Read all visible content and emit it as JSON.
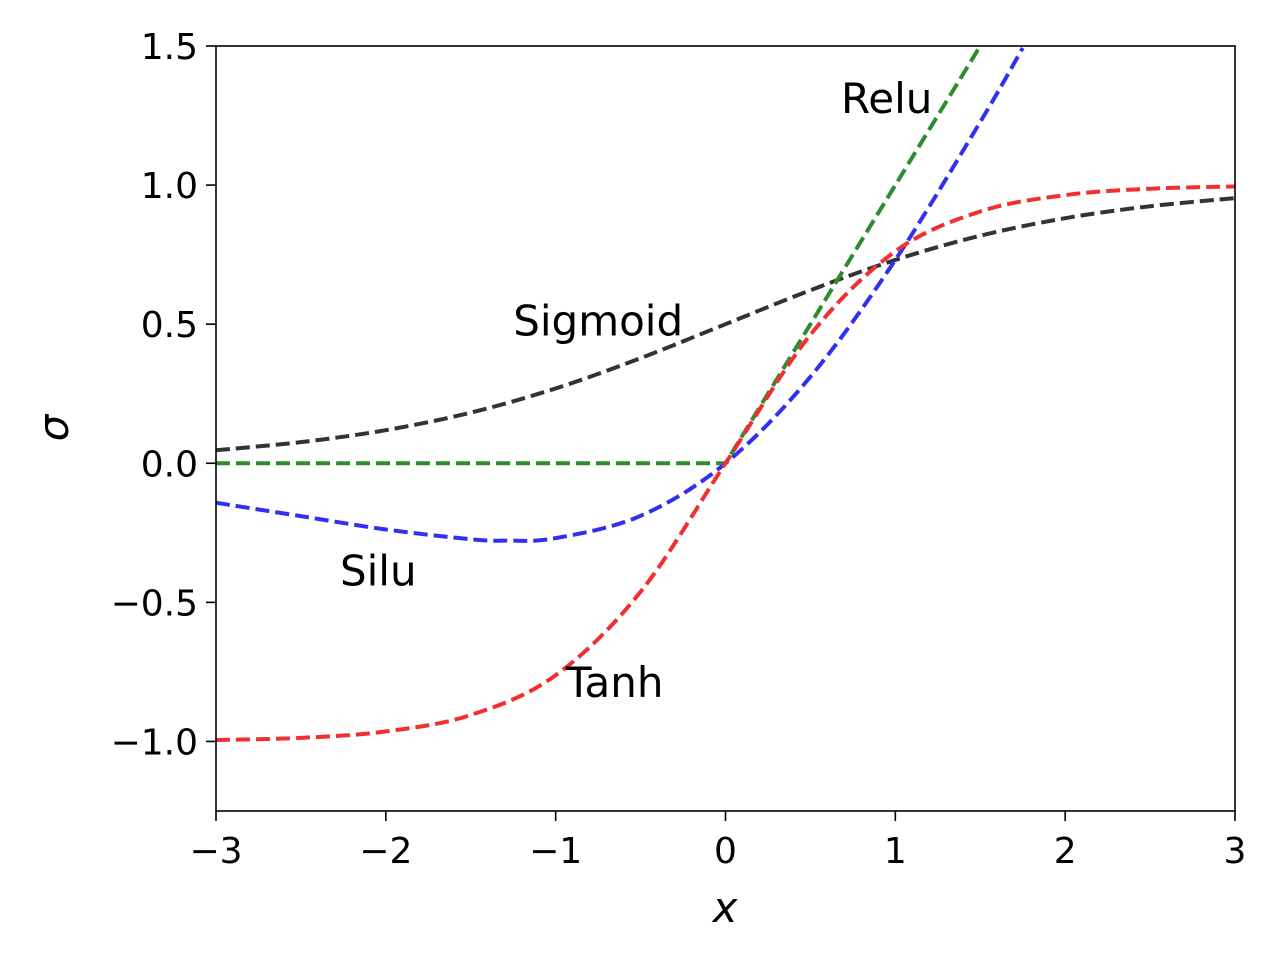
{
  "chart_data": {
    "type": "line",
    "xlabel": "x",
    "ylabel": "σ",
    "xlim": [
      -3,
      3
    ],
    "ylim": [
      -1.25,
      1.5
    ],
    "xticks": [
      -3,
      -2,
      -1,
      0,
      1,
      2,
      3
    ],
    "xtick_labels": [
      "−3",
      "−2",
      "−1",
      "0",
      "1",
      "2",
      "3"
    ],
    "yticks": [
      -1.0,
      -0.5,
      0.0,
      0.5,
      1.0,
      1.5
    ],
    "ytick_labels": [
      "−1.0",
      "−0.5",
      "0.0",
      "0.5",
      "1.0",
      "1.5"
    ],
    "grid": false,
    "line_style": "dashed",
    "series": [
      {
        "name": "Sigmoid",
        "color": "#333333",
        "x": [
          -3,
          -2.5,
          -2,
          -1.5,
          -1,
          -0.5,
          0,
          0.5,
          1,
          1.5,
          2,
          2.5,
          3
        ],
        "y": [
          0.047,
          0.076,
          0.119,
          0.182,
          0.269,
          0.378,
          0.5,
          0.622,
          0.731,
          0.818,
          0.881,
          0.924,
          0.953
        ]
      },
      {
        "name": "Relu",
        "color": "#2e8b2e",
        "x": [
          -3,
          -2,
          -1,
          0,
          0.5,
          1,
          1.5
        ],
        "y": [
          0,
          0,
          0,
          0,
          0.5,
          1.0,
          1.5
        ]
      },
      {
        "name": "Silu",
        "color": "#3030f0",
        "x": [
          -3,
          -2.5,
          -2,
          -1.5,
          -1.28,
          -1,
          -0.5,
          0,
          0.5,
          1,
          1.5,
          1.75
        ],
        "y": [
          -0.142,
          -0.19,
          -0.238,
          -0.273,
          -0.278,
          -0.269,
          -0.189,
          0,
          0.311,
          0.731,
          1.227,
          1.493
        ]
      },
      {
        "name": "Tanh",
        "color": "#f03030",
        "x": [
          -3,
          -2.5,
          -2,
          -1.5,
          -1,
          -0.5,
          0,
          0.5,
          1,
          1.5,
          2,
          2.5,
          3
        ],
        "y": [
          -0.995,
          -0.987,
          -0.964,
          -0.905,
          -0.762,
          -0.462,
          0,
          0.462,
          0.762,
          0.905,
          0.964,
          0.987,
          0.995
        ]
      }
    ],
    "annotations": [
      {
        "text": "Relu",
        "x": 0.68,
        "y": 1.26
      },
      {
        "text": "Sigmoid",
        "x": -1.25,
        "y": 0.46
      },
      {
        "text": "Silu",
        "x": -2.27,
        "y": -0.44
      },
      {
        "text": "Tanh",
        "x": -0.94,
        "y": -0.84
      }
    ]
  }
}
